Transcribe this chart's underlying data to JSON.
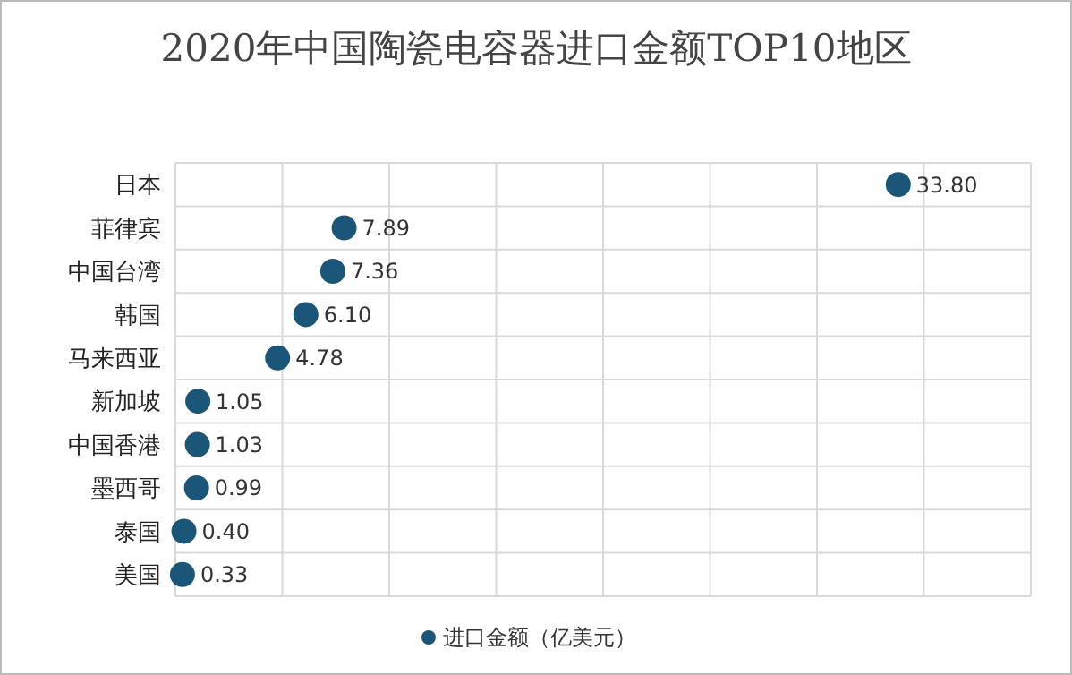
{
  "chart_data": {
    "type": "scatter",
    "orientation": "horizontal",
    "title": "2020年中国陶瓷电容器进口金额TOP10地区",
    "categories": [
      "日本",
      "菲律宾",
      "中国台湾",
      "韩国",
      "马来西亚",
      "新加坡",
      "中国香港",
      "墨西哥",
      "泰国",
      "美国"
    ],
    "series": [
      {
        "name": "进口金额（亿美元）",
        "color": "#1b5578",
        "values": [
          33.8,
          7.89,
          7.36,
          6.1,
          4.78,
          1.05,
          1.03,
          0.99,
          0.4,
          0.33
        ],
        "value_labels": [
          "33.80",
          "7.89",
          "7.36",
          "6.10",
          "4.78",
          "1.05",
          "1.03",
          "0.99",
          "0.40",
          "0.33"
        ]
      }
    ],
    "xlim": [
      0,
      40
    ],
    "xticks": [
      {
        "value": 0,
        "label": null
      },
      {
        "value": 5,
        "label": null
      },
      {
        "value": 10,
        "label": null
      },
      {
        "value": 15,
        "label": null
      },
      {
        "value": 20,
        "label": null
      },
      {
        "value": 25,
        "label": null
      },
      {
        "value": 30,
        "label": null
      },
      {
        "value": 35,
        "label": null
      },
      {
        "value": 40,
        "label": null
      }
    ],
    "tick_labels": "y",
    "grid": true,
    "legend": "bottom",
    "marker": "circle"
  }
}
